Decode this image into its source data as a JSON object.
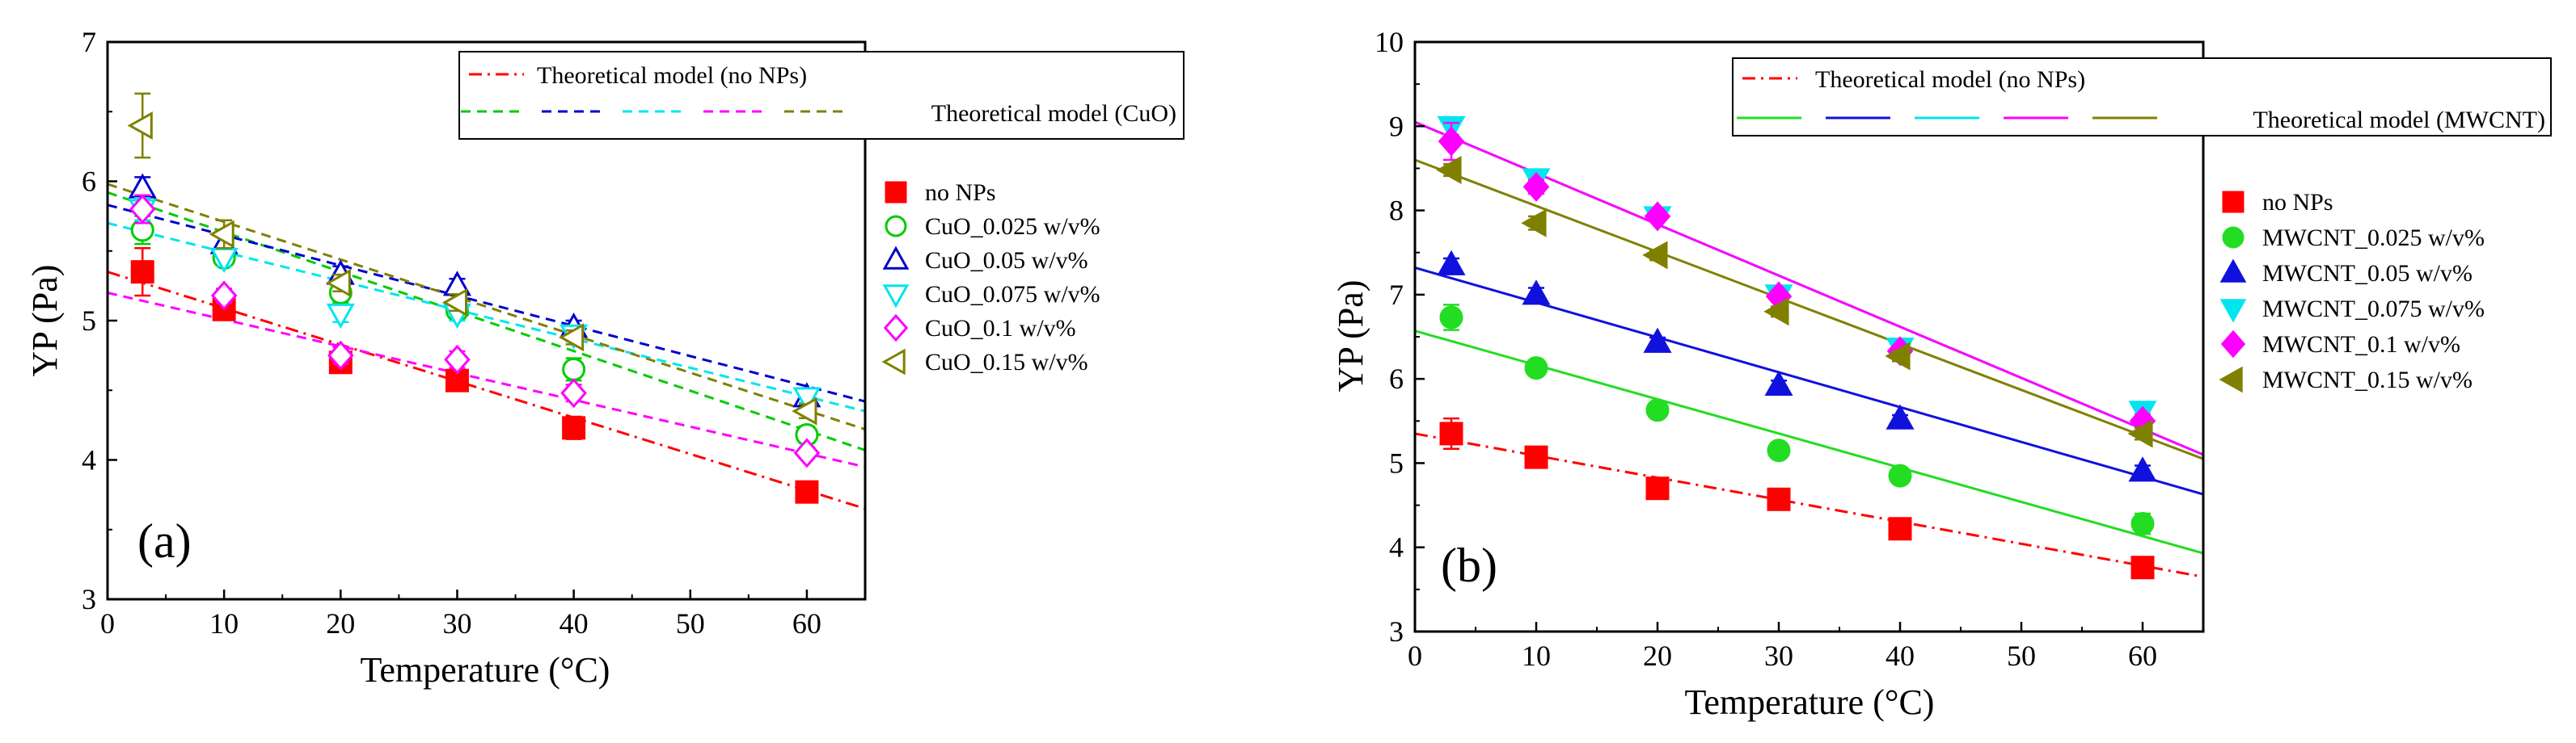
{
  "chart_data": [
    {
      "type": "scatter",
      "panel_label": "(a)",
      "xlabel": "Temperature (°C)",
      "ylabel": "YP (Pa)",
      "xlim": [
        0,
        65
      ],
      "ylim": [
        3,
        7
      ],
      "xticks": [
        "0",
        "10",
        "20",
        "30",
        "40",
        "50",
        "60"
      ],
      "yticks": [
        "3",
        "4",
        "5",
        "6",
        "7"
      ],
      "line_legend": {
        "no_nps_label": "Theoretical model (no NPs)",
        "nps_label": "Theoretical model (CuO)"
      },
      "series": [
        {
          "name": "no NPs",
          "marker": "square",
          "filled": true,
          "color": "#ff0000",
          "x": [
            3,
            10,
            20,
            30,
            40,
            60
          ],
          "y": [
            5.35,
            5.08,
            4.7,
            4.57,
            4.23,
            3.77
          ],
          "err": [
            0.17,
            0.04,
            0.06,
            0.05,
            0.08,
            0.05
          ],
          "model": {
            "y0": 5.35,
            "y65": 3.65,
            "style": "dashdot"
          }
        },
        {
          "name": "CuO_0.025 w/v%",
          "marker": "circle",
          "filled": false,
          "color": "#00cc00",
          "x": [
            3,
            10,
            20,
            30,
            40,
            60
          ],
          "y": [
            5.65,
            5.45,
            5.2,
            5.07,
            4.65,
            4.18
          ],
          "err": [
            0.1,
            0.05,
            0.07,
            0.05,
            0.08,
            0.06
          ],
          "model": {
            "y0": 5.92,
            "y65": 4.07,
            "style": "dash"
          }
        },
        {
          "name": "CuO_0.05 w/v%",
          "marker": "triangle-up",
          "filled": false,
          "color": "#0000cc",
          "x": [
            3,
            10,
            20,
            30,
            40,
            60
          ],
          "y": [
            5.95,
            5.55,
            5.33,
            5.25,
            4.95,
            4.45
          ],
          "err": [
            0.08,
            0.06,
            0.06,
            0.05,
            0.05,
            0.04
          ],
          "model": {
            "y0": 5.83,
            "y65": 4.42,
            "style": "dash"
          }
        },
        {
          "name": "CuO_0.075 w/v%",
          "marker": "triangle-down",
          "filled": false,
          "color": "#00e5ee",
          "x": [
            3,
            10,
            20,
            30,
            40,
            60
          ],
          "y": [
            5.8,
            5.45,
            5.05,
            5.05,
            4.9,
            4.45
          ],
          "err": [
            0.08,
            0.06,
            0.06,
            0.05,
            0.05,
            0.04
          ],
          "model": {
            "y0": 5.7,
            "y65": 4.35,
            "style": "dash"
          }
        },
        {
          "name": "CuO_0.1 w/v%",
          "marker": "diamond",
          "filled": false,
          "color": "#ff00ff",
          "x": [
            3,
            10,
            20,
            30,
            40,
            60
          ],
          "y": [
            5.8,
            5.18,
            4.75,
            4.72,
            4.48,
            4.05
          ],
          "err": [
            0.1,
            0.05,
            0.06,
            0.06,
            0.06,
            0.04
          ],
          "model": {
            "y0": 5.2,
            "y65": 3.95,
            "style": "dash"
          }
        },
        {
          "name": "CuO_0.15 w/v%",
          "marker": "triangle-left",
          "filled": false,
          "color": "#808000",
          "x": [
            3,
            10,
            20,
            30,
            40,
            60
          ],
          "y": [
            6.4,
            5.62,
            5.27,
            5.13,
            4.88,
            4.35
          ],
          "err": [
            0.23,
            0.1,
            0.06,
            0.06,
            0.05,
            0.05
          ],
          "model": {
            "y0": 5.98,
            "y65": 4.22,
            "style": "dash"
          }
        }
      ]
    },
    {
      "type": "scatter",
      "panel_label": "(b)",
      "xlabel": "Temperature (°C)",
      "ylabel": "YP (Pa)",
      "xlim": [
        0,
        65
      ],
      "ylim": [
        3,
        10
      ],
      "xticks": [
        "0",
        "10",
        "20",
        "30",
        "40",
        "50",
        "60"
      ],
      "yticks": [
        "3",
        "4",
        "5",
        "6",
        "7",
        "8",
        "9",
        "10"
      ],
      "line_legend": {
        "no_nps_label": "Theoretical model (no NPs)",
        "nps_label": "Theoretical model (MWCNT)"
      },
      "series": [
        {
          "name": "no NPs",
          "marker": "square",
          "filled": true,
          "color": "#ff0000",
          "x": [
            3,
            10,
            20,
            30,
            40,
            60
          ],
          "y": [
            5.35,
            5.07,
            4.7,
            4.57,
            4.22,
            3.76
          ],
          "err": [
            0.18,
            0.05,
            0.06,
            0.06,
            0.05,
            0.05
          ],
          "model": {
            "y0": 5.35,
            "y65": 3.65,
            "style": "dashdot"
          }
        },
        {
          "name": "MWCNT_0.025 w/v%",
          "marker": "circle",
          "filled": true,
          "color": "#22dd22",
          "x": [
            3,
            10,
            20,
            30,
            40,
            60
          ],
          "y": [
            6.73,
            6.13,
            5.63,
            5.15,
            4.85,
            4.28
          ],
          "err": [
            0.15,
            0.06,
            0.07,
            0.06,
            0.05,
            0.12
          ],
          "model": {
            "y0": 6.57,
            "y65": 3.93,
            "style": "solid"
          }
        },
        {
          "name": "MWCNT_0.05 w/v%",
          "marker": "triangle-up",
          "filled": true,
          "color": "#1111dd",
          "x": [
            3,
            10,
            20,
            30,
            40,
            60
          ],
          "y": [
            7.35,
            7.0,
            6.43,
            5.92,
            5.52,
            4.9
          ],
          "err": [
            0.08,
            0.08,
            0.06,
            0.06,
            0.05,
            0.07
          ],
          "model": {
            "y0": 7.32,
            "y65": 4.63,
            "style": "solid"
          }
        },
        {
          "name": "MWCNT_0.075 w/v%",
          "marker": "triangle-down",
          "filled": true,
          "color": "#00e5ee",
          "x": [
            3,
            10,
            20,
            30,
            40,
            60
          ],
          "y": [
            9.0,
            8.38,
            7.93,
            7.0,
            6.37,
            5.62
          ],
          "err": [
            0.1,
            0.07,
            0.06,
            0.05,
            0.05,
            0.08
          ],
          "model": {
            "y0": 9.05,
            "y65": 5.1,
            "style": "solid"
          }
        },
        {
          "name": "MWCNT_0.1 w/v%",
          "marker": "diamond",
          "filled": true,
          "color": "#ff00ff",
          "x": [
            3,
            10,
            20,
            30,
            40,
            60
          ],
          "y": [
            8.82,
            8.28,
            7.93,
            6.98,
            6.33,
            5.5
          ],
          "err": [
            0.22,
            0.08,
            0.06,
            0.06,
            0.05,
            0.08
          ],
          "model": {
            "y0": 9.05,
            "y65": 5.1,
            "style": "solid"
          }
        },
        {
          "name": "MWCNT_0.15 w/v%",
          "marker": "triangle-left",
          "filled": true,
          "color": "#808000",
          "x": [
            3,
            10,
            20,
            30,
            40,
            60
          ],
          "y": [
            8.48,
            7.85,
            7.47,
            6.8,
            6.27,
            5.35
          ],
          "err": [
            0.07,
            0.08,
            0.06,
            0.06,
            0.06,
            0.07
          ],
          "model": {
            "y0": 8.6,
            "y65": 5.05,
            "style": "solid"
          }
        }
      ]
    }
  ]
}
